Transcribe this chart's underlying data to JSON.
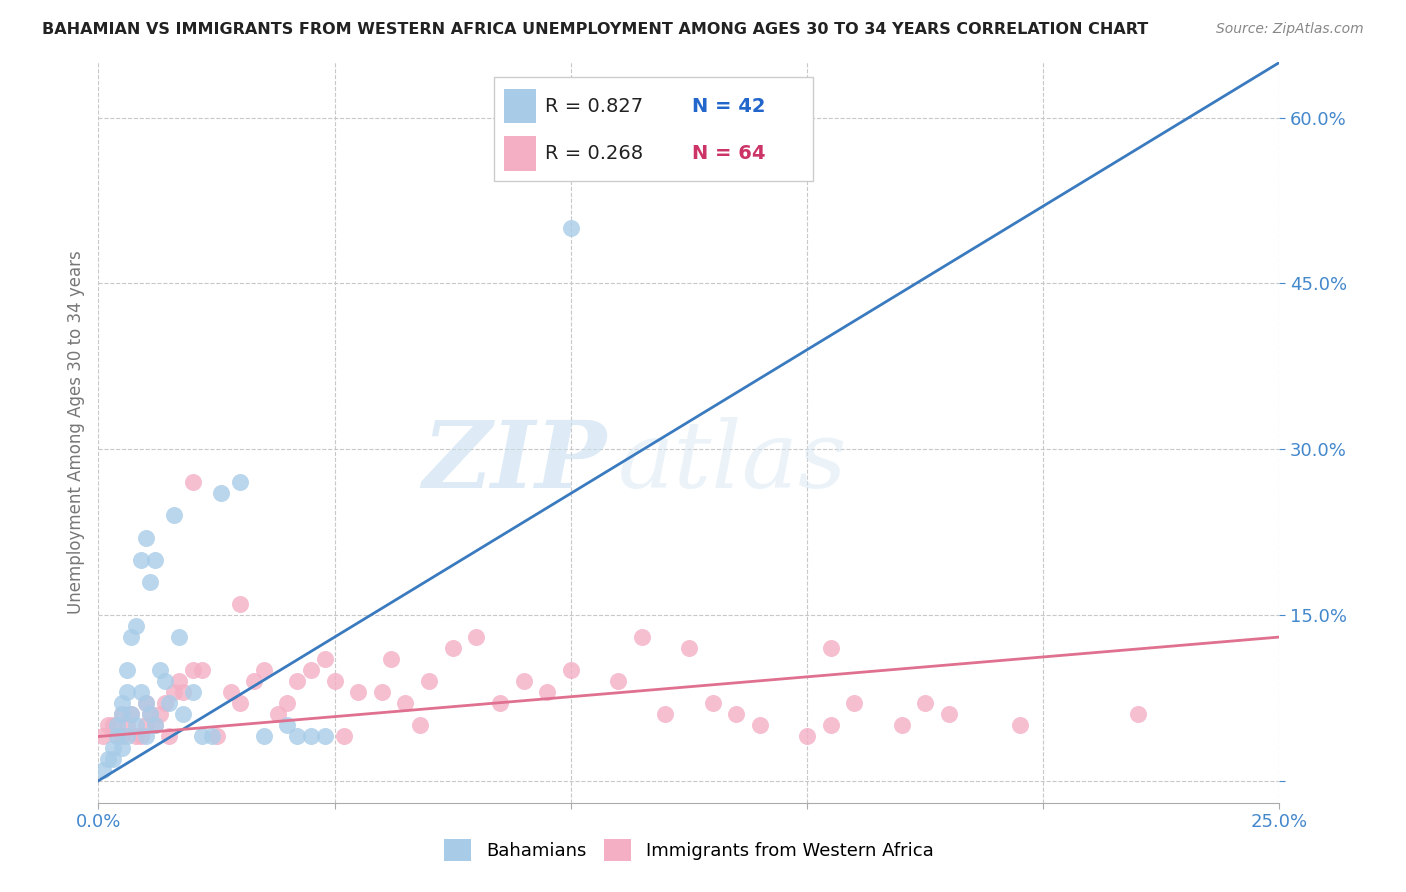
{
  "title": "BAHAMIAN VS IMMIGRANTS FROM WESTERN AFRICA UNEMPLOYMENT AMONG AGES 30 TO 34 YEARS CORRELATION CHART",
  "source": "Source: ZipAtlas.com",
  "ylabel": "Unemployment Among Ages 30 to 34 years",
  "xlim": [
    0.0,
    0.25
  ],
  "ylim": [
    -0.02,
    0.65
  ],
  "x_ticks": [
    0.0,
    0.05,
    0.1,
    0.15,
    0.2,
    0.25
  ],
  "y_ticks": [
    0.0,
    0.15,
    0.3,
    0.45,
    0.6
  ],
  "y_tick_labels": [
    "",
    "15.0%",
    "30.0%",
    "45.0%",
    "60.0%"
  ],
  "blue_R": 0.827,
  "blue_N": 42,
  "pink_R": 0.268,
  "pink_N": 64,
  "blue_color": "#a8cce8",
  "pink_color": "#f4afc5",
  "blue_line_color": "#3a7abf",
  "pink_line_color": "#e07090",
  "background_color": "#ffffff",
  "grid_color": "#c8c8c8",
  "watermark_zip": "ZIP",
  "watermark_atlas": "atlas",
  "blue_scatter_x": [
    0.001,
    0.002,
    0.003,
    0.003,
    0.004,
    0.004,
    0.005,
    0.005,
    0.005,
    0.006,
    0.006,
    0.006,
    0.007,
    0.007,
    0.008,
    0.008,
    0.009,
    0.009,
    0.01,
    0.01,
    0.01,
    0.011,
    0.011,
    0.012,
    0.012,
    0.013,
    0.014,
    0.015,
    0.016,
    0.017,
    0.018,
    0.02,
    0.022,
    0.024,
    0.026,
    0.03,
    0.035,
    0.04,
    0.042,
    0.045,
    0.048,
    0.1
  ],
  "blue_scatter_y": [
    0.01,
    0.02,
    0.02,
    0.03,
    0.04,
    0.05,
    0.03,
    0.06,
    0.07,
    0.04,
    0.08,
    0.1,
    0.06,
    0.13,
    0.05,
    0.14,
    0.08,
    0.2,
    0.04,
    0.07,
    0.22,
    0.06,
    0.18,
    0.05,
    0.2,
    0.1,
    0.09,
    0.07,
    0.24,
    0.13,
    0.06,
    0.08,
    0.04,
    0.04,
    0.26,
    0.27,
    0.04,
    0.05,
    0.04,
    0.04,
    0.04,
    0.5
  ],
  "pink_scatter_x": [
    0.001,
    0.002,
    0.003,
    0.004,
    0.005,
    0.005,
    0.006,
    0.007,
    0.008,
    0.009,
    0.01,
    0.01,
    0.011,
    0.012,
    0.013,
    0.014,
    0.015,
    0.016,
    0.017,
    0.018,
    0.02,
    0.022,
    0.025,
    0.028,
    0.03,
    0.033,
    0.035,
    0.038,
    0.04,
    0.042,
    0.045,
    0.048,
    0.05,
    0.052,
    0.055,
    0.06,
    0.062,
    0.065,
    0.068,
    0.07,
    0.075,
    0.08,
    0.085,
    0.09,
    0.095,
    0.1,
    0.11,
    0.115,
    0.12,
    0.125,
    0.13,
    0.135,
    0.14,
    0.15,
    0.155,
    0.16,
    0.17,
    0.175,
    0.18,
    0.195,
    0.02,
    0.03,
    0.155,
    0.22
  ],
  "pink_scatter_y": [
    0.04,
    0.05,
    0.05,
    0.04,
    0.06,
    0.04,
    0.05,
    0.06,
    0.04,
    0.04,
    0.05,
    0.07,
    0.06,
    0.05,
    0.06,
    0.07,
    0.04,
    0.08,
    0.09,
    0.08,
    0.1,
    0.1,
    0.04,
    0.08,
    0.07,
    0.09,
    0.1,
    0.06,
    0.07,
    0.09,
    0.1,
    0.11,
    0.09,
    0.04,
    0.08,
    0.08,
    0.11,
    0.07,
    0.05,
    0.09,
    0.12,
    0.13,
    0.07,
    0.09,
    0.08,
    0.1,
    0.09,
    0.13,
    0.06,
    0.12,
    0.07,
    0.06,
    0.05,
    0.04,
    0.12,
    0.07,
    0.05,
    0.07,
    0.06,
    0.05,
    0.27,
    0.16,
    0.05,
    0.06
  ],
  "blue_line_x": [
    0.0,
    0.25
  ],
  "blue_line_y": [
    0.0,
    0.65
  ],
  "pink_line_x": [
    0.0,
    0.25
  ],
  "pink_line_y": [
    0.04,
    0.13
  ]
}
